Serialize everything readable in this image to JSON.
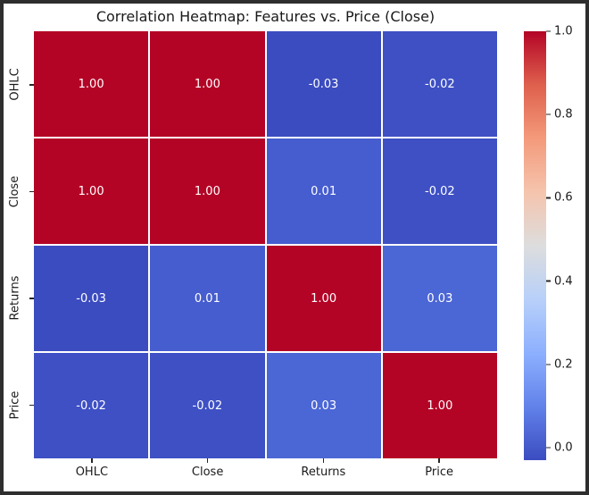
{
  "window": {
    "border_color": "#2e2e2e",
    "background": "#ffffff"
  },
  "chart_data": {
    "type": "heatmap",
    "title": "Correlation Heatmap: Features vs. Price (Close)",
    "colormap": "coolwarm",
    "x_categories": [
      "OHLC",
      "Close",
      "Returns",
      "Price"
    ],
    "y_categories": [
      "OHLC",
      "Close",
      "Returns",
      "Price"
    ],
    "matrix": [
      [
        1.0,
        1.0,
        -0.03,
        -0.02
      ],
      [
        1.0,
        1.0,
        0.01,
        -0.02
      ],
      [
        -0.03,
        0.01,
        1.0,
        0.03
      ],
      [
        -0.02,
        -0.02,
        0.03,
        1.0
      ]
    ],
    "cell_labels": [
      [
        "1.00",
        "1.00",
        "-0.03",
        "-0.02"
      ],
      [
        "1.00",
        "1.00",
        "0.01",
        "-0.02"
      ],
      [
        "-0.03",
        "0.01",
        "1.00",
        "0.03"
      ],
      [
        "-0.02",
        "-0.02",
        "0.03",
        "1.00"
      ]
    ],
    "cell_colors": [
      [
        "#b40426",
        "#b40426",
        "#3b4cc0",
        "#3e50c4"
      ],
      [
        "#b40426",
        "#b40426",
        "#465dcf",
        "#3e50c4"
      ],
      [
        "#3b4cc0",
        "#465dcf",
        "#b40426",
        "#4b66d5"
      ],
      [
        "#3e50c4",
        "#3e50c4",
        "#4b66d5",
        "#b40426"
      ]
    ],
    "annotation_text_color": "#ffffff",
    "gridline_color": "#ffffff",
    "axis_text_color": "#1a1a1a",
    "vmin": -0.03,
    "vmax": 1.0,
    "legend_position": "right",
    "colorbar": {
      "tick_values": [
        1.0,
        0.8,
        0.6,
        0.4,
        0.2,
        0.0
      ],
      "tick_labels": [
        "1.0",
        "0.8",
        "0.6",
        "0.4",
        "0.2",
        "0.0"
      ],
      "gradient_stops_top_to_bottom": [
        "#b40426",
        "#de604d",
        "#f49a7b",
        "#f5c4ad",
        "#dddddd",
        "#b8d0f9",
        "#8db0fe",
        "#6282ea",
        "#3b4cc0"
      ]
    }
  }
}
